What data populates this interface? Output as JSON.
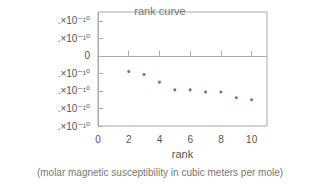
{
  "chart_data": {
    "type": "scatter",
    "title": "rank curve",
    "subtitle": "(molar magnetic susceptibility in cubic meters per mole)",
    "x_label": "rank",
    "x": [
      2,
      3,
      4,
      5,
      6,
      7,
      8,
      9,
      10
    ],
    "values": [
      -8.9e-11,
      -1.06e-10,
      -1.5e-10,
      -1.94e-10,
      -1.94e-10,
      -2.06e-10,
      -2.06e-10,
      -2.39e-10,
      -2.5e-10
    ],
    "color": "#3a4fa0",
    "marker": "circle",
    "xlim": [
      0,
      11
    ],
    "xticks": [
      0,
      2,
      4,
      6,
      8,
      10
    ],
    "ylim": [
      -4e-10,
      2.5e-10
    ],
    "yticks": [
      {
        "value": -4e-10,
        "label": ".×10⁻¹⁰"
      },
      {
        "value": -3e-10,
        "label": ".×10⁻¹⁰"
      },
      {
        "value": -2e-10,
        "label": ".×10⁻¹⁰"
      },
      {
        "value": -1e-10,
        "label": ".×10⁻¹⁰"
      },
      0,
      {
        "value": 1e-10,
        "label": ".×10⁻¹⁰"
      },
      {
        "value": 2e-10,
        "label": ".×10⁻¹⁰"
      }
    ],
    "grid": false
  }
}
